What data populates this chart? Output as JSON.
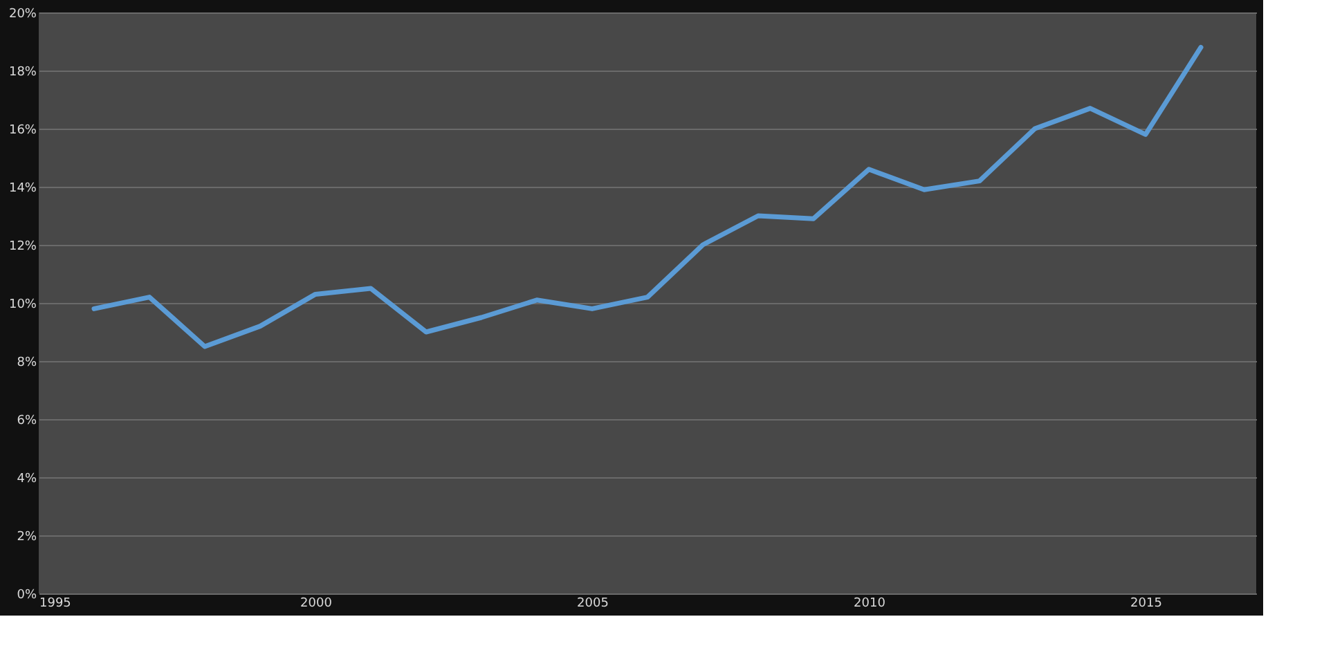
{
  "chart_data": {
    "type": "line",
    "x": [
      1996,
      1997,
      1998,
      1999,
      2000,
      2001,
      2002,
      2003,
      2004,
      2005,
      2006,
      2007,
      2008,
      2009,
      2010,
      2011,
      2012,
      2013,
      2014,
      2015,
      2016
    ],
    "series": [
      {
        "color": "#5b9bd5",
        "values": [
          9.8,
          10.2,
          8.5,
          9.2,
          10.3,
          10.5,
          9.0,
          9.5,
          10.1,
          9.8,
          10.2,
          12.0,
          13.0,
          12.9,
          14.6,
          13.9,
          14.2,
          16.0,
          16.7,
          15.8,
          18.8
        ]
      }
    ],
    "xlim": [
      1995,
      2017
    ],
    "xticks": [
      1995,
      2000,
      2005,
      2010,
      2015
    ],
    "ylim": [
      0,
      20
    ],
    "yticks": [
      {
        "value": 0,
        "label": "0%"
      },
      {
        "value": 2,
        "label": "2%"
      },
      {
        "value": 4,
        "label": "4%"
      },
      {
        "value": 6,
        "label": "6%"
      },
      {
        "value": 8,
        "label": "8%"
      },
      {
        "value": 10,
        "label": "10%"
      },
      {
        "value": 12,
        "label": "12%"
      },
      {
        "value": 14,
        "label": "14%"
      },
      {
        "value": 16,
        "label": "16%"
      },
      {
        "value": 18,
        "label": "18%"
      },
      {
        "value": 20,
        "label": "20%"
      }
    ],
    "grid": "y",
    "marker": "none",
    "line_style": "solid",
    "legend": false
  }
}
